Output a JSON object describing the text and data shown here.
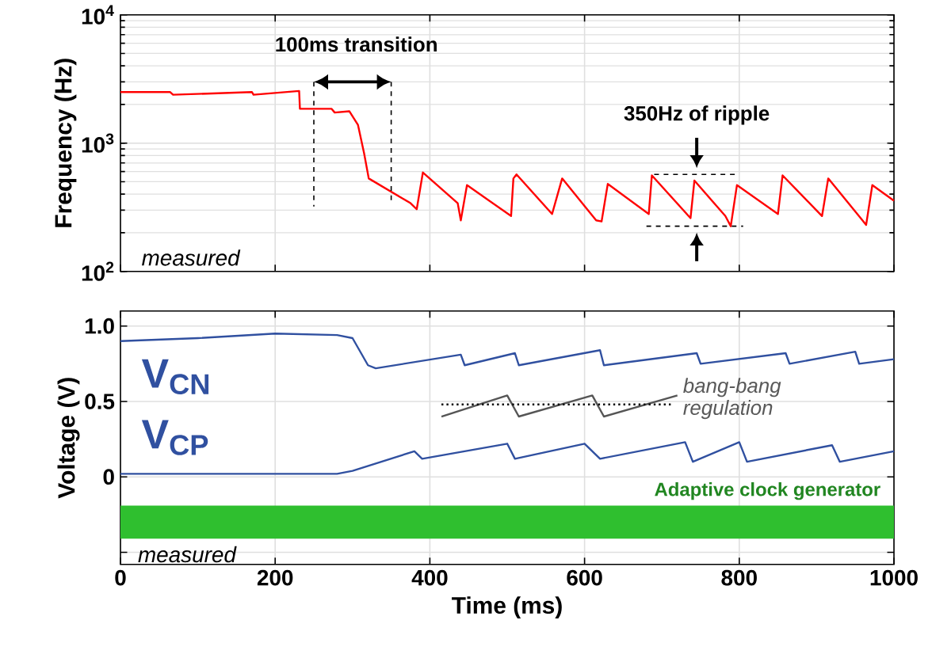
{
  "chart_data": [
    {
      "type": "line",
      "ylabel": "Frequency (Hz)",
      "xlim": [
        0,
        1000
      ],
      "xticks": [
        0,
        200,
        400,
        600,
        800,
        1000
      ],
      "ylim": [
        100,
        10000
      ],
      "yticks": [
        {
          "value": 100,
          "label": "10$^{2}$"
        },
        {
          "value": 1000,
          "label": "10$^{3}$"
        },
        {
          "value": 10000,
          "label": "10$^{4}$"
        }
      ],
      "log": "y",
      "grid": true,
      "tick_labels": "y",
      "annotations": [
        "100ms transition",
        "350Hz of ripple",
        "measured"
      ],
      "series": [
        {
          "color": "#ff0000",
          "x": [
            0,
            64,
            68,
            170,
            172,
            231,
            232,
            273,
            277,
            296,
            307,
            315,
            321,
            375,
            383,
            391,
            436,
            440,
            448,
            505,
            508,
            512,
            558,
            571,
            615,
            622,
            630,
            683,
            687,
            737,
            742,
            782,
            789,
            797,
            850,
            856,
            907,
            915,
            957,
            964,
            972,
            1000
          ],
          "values": [
            2500,
            2500,
            2380,
            2500,
            2380,
            2550,
            1850,
            1850,
            1730,
            1770,
            1390,
            830,
            530,
            340,
            305,
            590,
            340,
            250,
            470,
            270,
            530,
            570,
            280,
            530,
            250,
            245,
            480,
            280,
            560,
            260,
            510,
            270,
            225,
            470,
            280,
            560,
            270,
            530,
            260,
            230,
            470,
            355
          ]
        }
      ]
    },
    {
      "type": "line",
      "xlabel": "Time (ms)",
      "ylabel": "Voltage (V)",
      "xlim": [
        0,
        1000
      ],
      "xticks": [
        0,
        200,
        400,
        600,
        800,
        1000
      ],
      "ylim": [
        -0.58,
        1.1
      ],
      "yticks": [
        {
          "value": -0.5,
          "label": null
        },
        0,
        0.5,
        {
          "value": 1,
          "label": "1.0"
        }
      ],
      "grid": true,
      "annotations": [
        "bang-bang regulation",
        "measured"
      ],
      "bands": [
        {
          "axis": "y",
          "from": -0.41,
          "to": -0.19,
          "label": "Adaptive clock generator",
          "color": "#2fbf2f"
        }
      ],
      "series": [
        {
          "name": "V$_{CN}$",
          "color": "#3050a0",
          "x": [
            0,
            100,
            200,
            280,
            300,
            320,
            330,
            440,
            445,
            510,
            515,
            620,
            625,
            745,
            750,
            860,
            865,
            950,
            955,
            1000
          ],
          "values": [
            0.9,
            0.92,
            0.95,
            0.94,
            0.92,
            0.74,
            0.72,
            0.81,
            0.74,
            0.82,
            0.74,
            0.84,
            0.74,
            0.82,
            0.75,
            0.82,
            0.75,
            0.83,
            0.75,
            0.78
          ]
        },
        {
          "name": "V$_{CP}$",
          "color": "#3050a0",
          "x": [
            0,
            280,
            300,
            380,
            390,
            500,
            510,
            600,
            620,
            730,
            740,
            800,
            810,
            920,
            930,
            1000
          ],
          "values": [
            0.02,
            0.02,
            0.04,
            0.17,
            0.12,
            0.22,
            0.12,
            0.22,
            0.12,
            0.23,
            0.1,
            0.23,
            0.1,
            0.21,
            0.1,
            0.17
          ]
        },
        {
          "color": "#555555",
          "x": [
            415,
            500,
            515,
            610,
            625,
            720
          ],
          "values": [
            0.4,
            0.54,
            0.4,
            0.54,
            0.4,
            0.54
          ]
        },
        {
          "color": "#000000",
          "line_style": "dotted",
          "x": [
            415,
            715
          ],
          "values": [
            0.48,
            0.48
          ]
        }
      ]
    }
  ]
}
